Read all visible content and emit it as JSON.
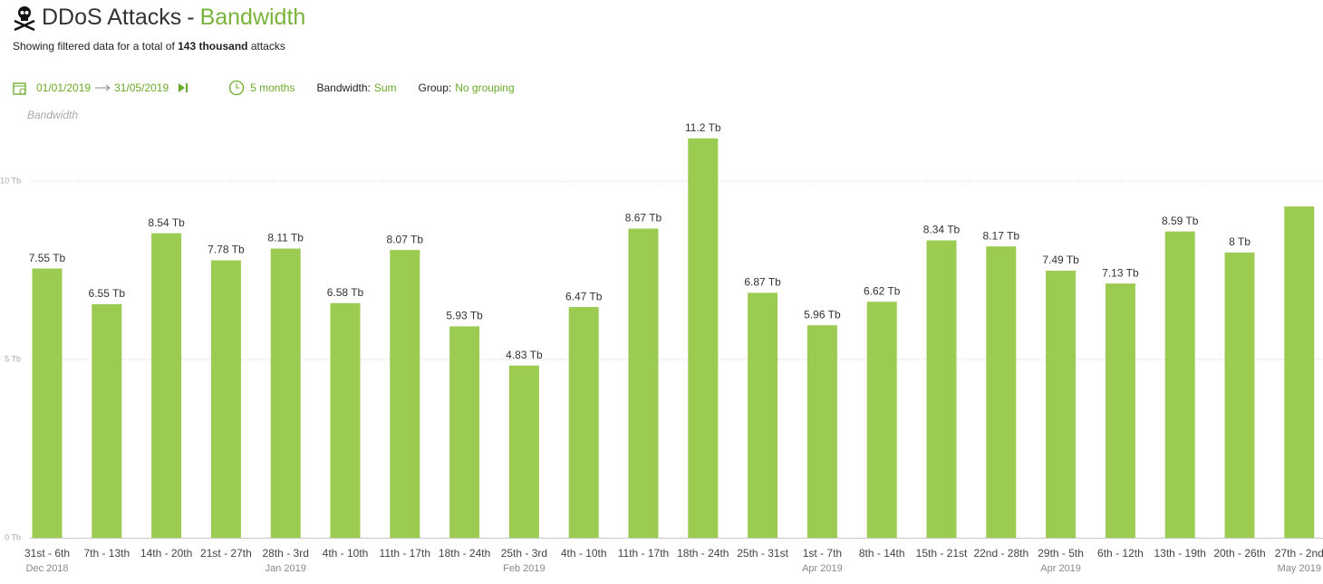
{
  "header": {
    "title": "DDoS Attacks",
    "separator": "-",
    "title_accent": "Bandwidth",
    "subtitle_pre": "Showing filtered data for a total of",
    "subtitle_bold": "143 thousand",
    "subtitle_post": "attacks"
  },
  "filters": {
    "date_from": "01/01/2019",
    "date_to": "31/05/2019",
    "period": "5 months",
    "metric_label": "Bandwidth:",
    "metric_value": "Sum",
    "group_label": "Group:",
    "group_value": "No grouping"
  },
  "chart_data": {
    "type": "bar",
    "y_label": "Bandwidth",
    "categories": [
      "31st - 6th",
      "7th - 13th",
      "14th - 20th",
      "21st - 27th",
      "28th - 3rd",
      "4th - 10th",
      "11th - 17th",
      "18th - 24th",
      "25th - 3rd",
      "4th - 10th",
      "11th - 17th",
      "18th - 24th",
      "25th - 31st",
      "1st - 7th",
      "8th - 14th",
      "15th - 21st",
      "22nd - 28th",
      "29th - 5th",
      "6th - 12th",
      "13th - 19th",
      "20th - 26th",
      "27th - 2nd"
    ],
    "category_groups": [
      "Dec 2018",
      null,
      null,
      null,
      "Jan 2019",
      null,
      null,
      null,
      "Feb 2019",
      null,
      null,
      null,
      null,
      "Apr 2019",
      null,
      null,
      null,
      "Apr 2019",
      null,
      null,
      null,
      "May 2019"
    ],
    "values": [
      7.55,
      6.55,
      8.54,
      7.78,
      8.11,
      6.58,
      8.07,
      5.93,
      4.83,
      6.47,
      8.67,
      11.2,
      6.87,
      5.96,
      6.62,
      8.34,
      8.17,
      7.49,
      7.13,
      8.59,
      8,
      9.29
    ],
    "value_labels": [
      "7.55 Tb",
      "6.55 Tb",
      "8.54 Tb",
      "7.78 Tb",
      "8.11 Tb",
      "6.58 Tb",
      "8.07 Tb",
      "5.93 Tb",
      "4.83 Tb",
      "6.47 Tb",
      "8.67 Tb",
      "11.2 Tb",
      "6.87 Tb",
      "5.96 Tb",
      "6.62 Tb",
      "8.34 Tb",
      "8.17 Tb",
      "7.49 Tb",
      "7.13 Tb",
      "8.59 Tb",
      "8 Tb",
      null
    ],
    "color": "#9bcb50",
    "ylim": [
      0,
      11.5
    ],
    "yticks": [
      {
        "value": 0,
        "label": "0 Tb"
      },
      {
        "value": 5,
        "label": "5 Tb"
      },
      {
        "value": 10,
        "label": "10 Tb"
      }
    ],
    "grid": true
  }
}
